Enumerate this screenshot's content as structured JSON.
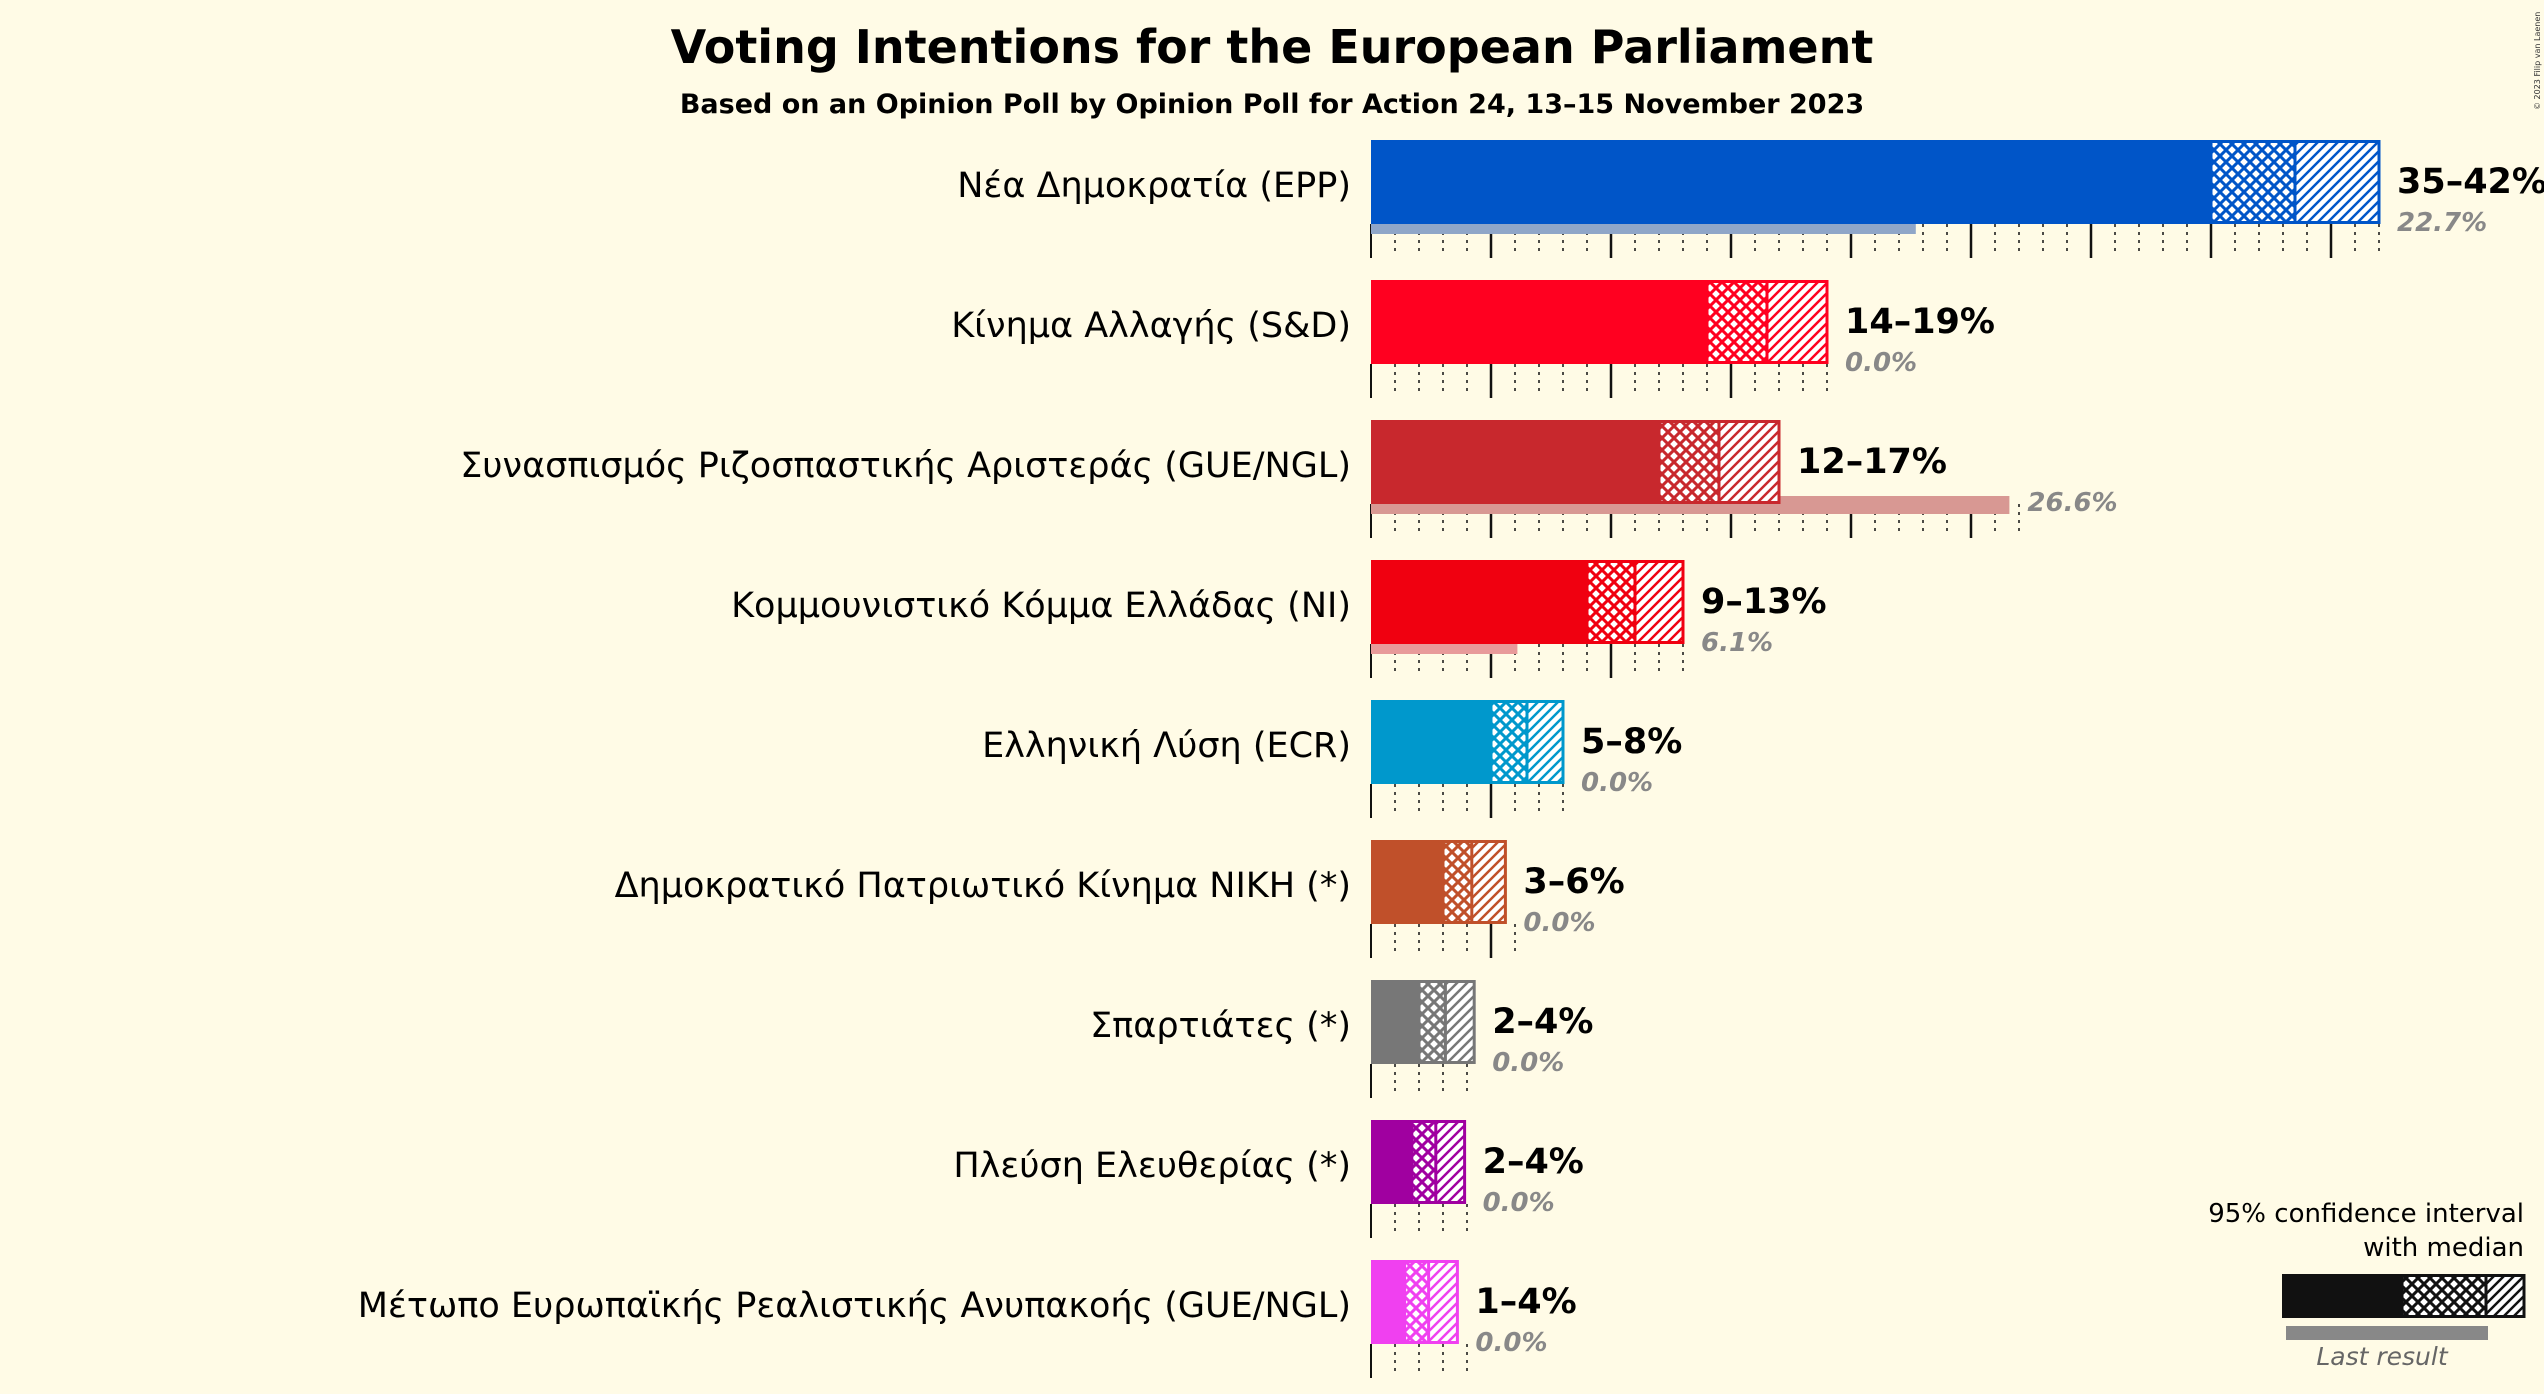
{
  "chart_data": {
    "type": "bar",
    "title": "Voting Intentions for the European Parliament",
    "subtitle": "Based on an Opinion Poll by Opinion Poll for Action 24, 13–15 November 2023",
    "copyright": "© 2023 Filip van Laenen",
    "parties": [
      {
        "name": "Νέα Δημοκρατία (EPP)",
        "low": 35,
        "median": 38.5,
        "high": 42,
        "range_label": "35–42%",
        "last_result": 22.7,
        "last_label": "22.7%",
        "color": "#0055c8",
        "last_color": "#8fa6c8"
      },
      {
        "name": "Κίνημα Αλλαγής (S&D)",
        "low": 14,
        "median": 16.5,
        "high": 19,
        "range_label": "14–19%",
        "last_result": 0.0,
        "last_label": "0.0%",
        "color": "#ff0020",
        "last_color": "#e89a9a"
      },
      {
        "name": "Συνασπισμός Ριζοσπαστικής Αριστεράς (GUE/NGL)",
        "low": 12,
        "median": 14.5,
        "high": 17,
        "range_label": "12–17%",
        "last_result": 26.6,
        "last_label": "26.6%",
        "color": "#c8282d",
        "last_color": "#d89893"
      },
      {
        "name": "Κομμουνιστικό Κόμμα Ελλάδας (NI)",
        "low": 9,
        "median": 11,
        "high": 13,
        "range_label": "9–13%",
        "last_result": 6.1,
        "last_label": "6.1%",
        "color": "#f00010",
        "last_color": "#e89a9a"
      },
      {
        "name": "Ελληνική Λύση (ECR)",
        "low": 5,
        "median": 6.5,
        "high": 8,
        "range_label": "5–8%",
        "last_result": 0.0,
        "last_label": "0.0%",
        "color": "#0098cc",
        "last_color": "#8ec6dc"
      },
      {
        "name": "Δημοκρατικό Πατριωτικό Κίνημα ΝΙΚΗ (*)",
        "low": 3,
        "median": 4.2,
        "high": 5.6,
        "range_label": "3–6%",
        "last_result": 0.0,
        "last_label": "0.0%",
        "color": "#c0502a",
        "last_color": "#dca590"
      },
      {
        "name": "Σπαρτιάτες (*)",
        "low": 2,
        "median": 3.1,
        "high": 4.3,
        "range_label": "2–4%",
        "last_result": 0.0,
        "last_label": "0.0%",
        "color": "#777777",
        "last_color": "#bbbbbb"
      },
      {
        "name": "Πλεύση Ελευθερίας (*)",
        "low": 1.7,
        "median": 2.7,
        "high": 3.9,
        "range_label": "2–4%",
        "last_result": 0.0,
        "last_label": "0.0%",
        "color": "#a000a0",
        "last_color": "#d08ad0"
      },
      {
        "name": "Μέτωπο Ευρωπαϊκής Ρεαλιστικής Ανυπακοής (GUE/NGL)",
        "low": 1.4,
        "median": 2.4,
        "high": 3.6,
        "range_label": "1–4%",
        "last_result": 0.0,
        "last_label": "0.0%",
        "color": "#f040f0",
        "last_color": "#f0a8f0"
      }
    ],
    "xlim": [
      0,
      42
    ],
    "legend": {
      "line1": "95% confidence interval",
      "line2": "with median",
      "last": "Last result",
      "placement": "bottom-right"
    }
  }
}
